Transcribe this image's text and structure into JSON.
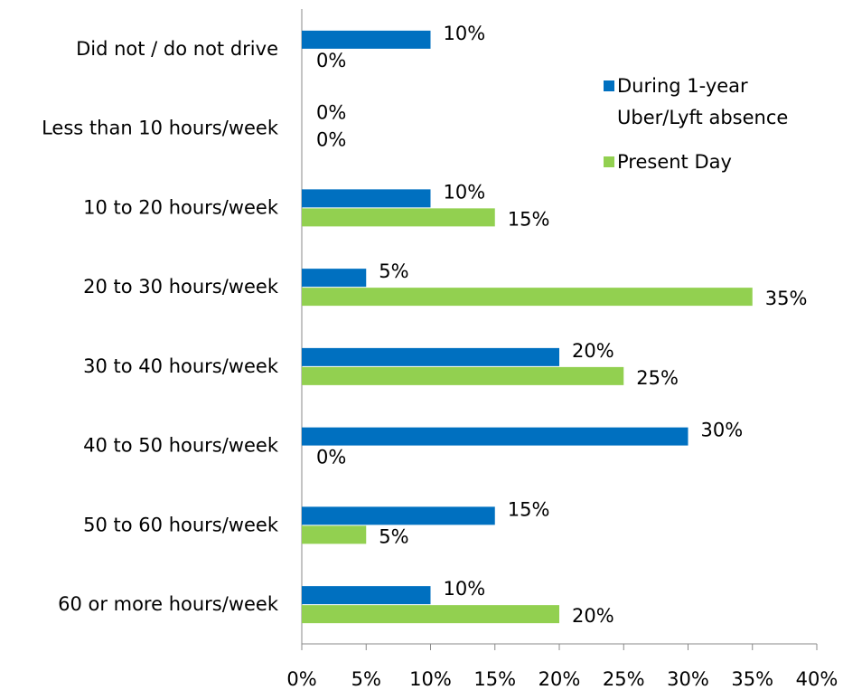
{
  "chart_data": {
    "type": "bar",
    "orientation": "horizontal",
    "categories": [
      "Did not / do not drive",
      "Less than 10 hours/week",
      "10 to 20 hours/week",
      "20 to 30 hours/week",
      "30 to 40 hours/week",
      "40 to 50 hours/week",
      "50 to 60 hours/week",
      "60 or more hours/week"
    ],
    "series": [
      {
        "name": "During 1-year Uber/Lyft absence",
        "color": "#0070c0",
        "values": [
          10,
          0,
          10,
          5,
          20,
          30,
          15,
          10
        ],
        "value_labels": [
          "10%",
          "0%",
          "10%",
          "5%",
          "20%",
          "30%",
          "15%",
          "10%"
        ]
      },
      {
        "name": "Present Day",
        "color": "#92d050",
        "values": [
          0,
          0,
          15,
          35,
          25,
          0,
          5,
          20
        ],
        "value_labels": [
          "0%",
          "0%",
          "15%",
          "35%",
          "25%",
          "0%",
          "5%",
          "20%"
        ]
      }
    ],
    "xlim": [
      0,
      40
    ],
    "xticks": [
      {
        "value": 0,
        "label": "0%"
      },
      {
        "value": 5,
        "label": "5%"
      },
      {
        "value": 10,
        "label": "10%"
      },
      {
        "value": 15,
        "label": "15%"
      },
      {
        "value": 20,
        "label": "20%"
      },
      {
        "value": 25,
        "label": "25%"
      },
      {
        "value": 30,
        "label": "30%"
      },
      {
        "value": 35,
        "label": "35%"
      },
      {
        "value": 40,
        "label": "40%"
      }
    ],
    "legend": "right"
  }
}
